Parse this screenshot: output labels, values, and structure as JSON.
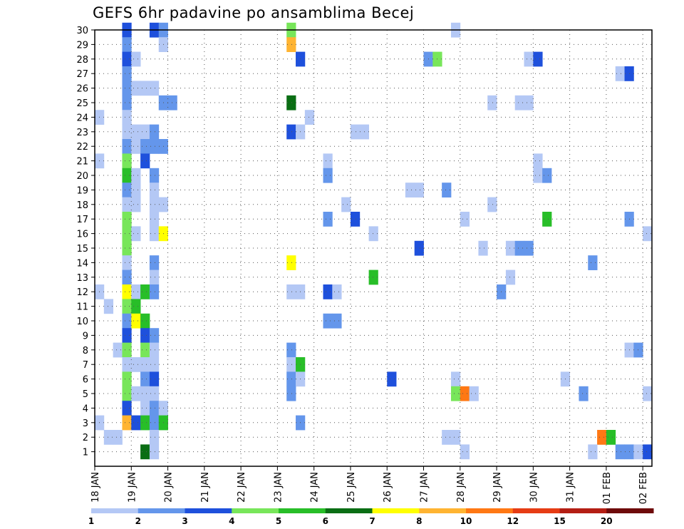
{
  "chart_data": {
    "type": "heatmap",
    "title": "GEFS 6hr padavine po ansamblima Becej",
    "x_tick_labels": [
      "18 JAN",
      "19 JAN",
      "20 JAN",
      "21 JAN",
      "22 JAN",
      "23 JAN",
      "24 JAN",
      "25 JAN",
      "26 JAN",
      "27 JAN",
      "28 JAN",
      "29 JAN",
      "30 JAN",
      "31 JAN",
      "01 FEB",
      "02 FEB"
    ],
    "y_tick_labels": [
      1,
      2,
      3,
      4,
      5,
      6,
      7,
      8,
      9,
      10,
      11,
      12,
      13,
      14,
      15,
      16,
      17,
      18,
      19,
      20,
      21,
      22,
      23,
      24,
      25,
      26,
      27,
      28,
      29,
      30
    ],
    "x_unit": "6-hour step from 18 JAN 00Z",
    "x_range": [
      0,
      61
    ],
    "y_range": [
      0,
      30
    ],
    "grid": true,
    "colorbar": {
      "tick_labels": [
        "1",
        "2",
        "3",
        "4",
        "5",
        "6",
        "7",
        "8",
        "10",
        "12",
        "15",
        "20"
      ],
      "colors": [
        "#b4c8f5",
        "#6496eb",
        "#1e50dc",
        "#78e65a",
        "#28be28",
        "#0a6e14",
        "#ffff00",
        "#ffb432",
        "#ff7814",
        "#e63c14",
        "#b41e14",
        "#6e0a0a"
      ]
    },
    "cells": [
      [
        3,
        30,
        2
      ],
      [
        6,
        30,
        2
      ],
      [
        7,
        30,
        1
      ],
      [
        21,
        30,
        3
      ],
      [
        39,
        30,
        0
      ],
      [
        3,
        29,
        1
      ],
      [
        7,
        29,
        0
      ],
      [
        21,
        29,
        7
      ],
      [
        3,
        28,
        2
      ],
      [
        4,
        28,
        0
      ],
      [
        22,
        28,
        2
      ],
      [
        36,
        28,
        1
      ],
      [
        37,
        28,
        3
      ],
      [
        47,
        28,
        0
      ],
      [
        48,
        28,
        2
      ],
      [
        3,
        27,
        1
      ],
      [
        57,
        27,
        0
      ],
      [
        58,
        27,
        2
      ],
      [
        3,
        26,
        1
      ],
      [
        4,
        26,
        0
      ],
      [
        5,
        26,
        0
      ],
      [
        6,
        26,
        0
      ],
      [
        3,
        25,
        1
      ],
      [
        7,
        25,
        1
      ],
      [
        8,
        25,
        1
      ],
      [
        21,
        25,
        5
      ],
      [
        43,
        25,
        0
      ],
      [
        46,
        25,
        0
      ],
      [
        47,
        25,
        0
      ],
      [
        0,
        24,
        0
      ],
      [
        3,
        24,
        0
      ],
      [
        23,
        24,
        0
      ],
      [
        3,
        23,
        0
      ],
      [
        4,
        23,
        0
      ],
      [
        5,
        23,
        0
      ],
      [
        6,
        23,
        1
      ],
      [
        21,
        23,
        2
      ],
      [
        22,
        23,
        0
      ],
      [
        28,
        23,
        0
      ],
      [
        29,
        23,
        0
      ],
      [
        3,
        22,
        1
      ],
      [
        4,
        22,
        0
      ],
      [
        5,
        22,
        1
      ],
      [
        6,
        22,
        1
      ],
      [
        7,
        22,
        1
      ],
      [
        0,
        21,
        0
      ],
      [
        3,
        21,
        3
      ],
      [
        5,
        21,
        2
      ],
      [
        25,
        21,
        0
      ],
      [
        48,
        21,
        0
      ],
      [
        3,
        20,
        4
      ],
      [
        4,
        20,
        0
      ],
      [
        6,
        20,
        1
      ],
      [
        25,
        20,
        1
      ],
      [
        48,
        20,
        0
      ],
      [
        49,
        20,
        1
      ],
      [
        3,
        19,
        1
      ],
      [
        4,
        19,
        0
      ],
      [
        6,
        19,
        0
      ],
      [
        34,
        19,
        0
      ],
      [
        35,
        19,
        0
      ],
      [
        38,
        19,
        1
      ],
      [
        3,
        18,
        0
      ],
      [
        4,
        18,
        0
      ],
      [
        6,
        18,
        0
      ],
      [
        7,
        18,
        0
      ],
      [
        27,
        18,
        0
      ],
      [
        43,
        18,
        0
      ],
      [
        3,
        17,
        3
      ],
      [
        6,
        17,
        0
      ],
      [
        25,
        17,
        1
      ],
      [
        28,
        17,
        2
      ],
      [
        40,
        17,
        0
      ],
      [
        49,
        17,
        4
      ],
      [
        58,
        17,
        1
      ],
      [
        3,
        16,
        3
      ],
      [
        4,
        16,
        0
      ],
      [
        6,
        16,
        0
      ],
      [
        7,
        16,
        6
      ],
      [
        30,
        16,
        0
      ],
      [
        60,
        16,
        0
      ],
      [
        3,
        15,
        3
      ],
      [
        35,
        15,
        2
      ],
      [
        42,
        15,
        0
      ],
      [
        45,
        15,
        0
      ],
      [
        46,
        15,
        1
      ],
      [
        47,
        15,
        1
      ],
      [
        3,
        14,
        0
      ],
      [
        6,
        14,
        1
      ],
      [
        21,
        14,
        6
      ],
      [
        54,
        14,
        1
      ],
      [
        3,
        13,
        1
      ],
      [
        6,
        13,
        0
      ],
      [
        30,
        13,
        4
      ],
      [
        45,
        13,
        0
      ],
      [
        0,
        12,
        0
      ],
      [
        3,
        12,
        6
      ],
      [
        4,
        12,
        0
      ],
      [
        5,
        12,
        4
      ],
      [
        6,
        12,
        1
      ],
      [
        21,
        12,
        0
      ],
      [
        22,
        12,
        0
      ],
      [
        25,
        12,
        2
      ],
      [
        26,
        12,
        0
      ],
      [
        44,
        12,
        1
      ],
      [
        1,
        11,
        0
      ],
      [
        3,
        11,
        3
      ],
      [
        4,
        11,
        4
      ],
      [
        3,
        10,
        1
      ],
      [
        4,
        10,
        6
      ],
      [
        5,
        10,
        4
      ],
      [
        25,
        10,
        1
      ],
      [
        26,
        10,
        1
      ],
      [
        3,
        9,
        2
      ],
      [
        5,
        9,
        2
      ],
      [
        6,
        9,
        1
      ],
      [
        2,
        8,
        0
      ],
      [
        3,
        8,
        3
      ],
      [
        5,
        8,
        3
      ],
      [
        6,
        8,
        0
      ],
      [
        21,
        8,
        1
      ],
      [
        58,
        8,
        0
      ],
      [
        59,
        8,
        1
      ],
      [
        3,
        7,
        0
      ],
      [
        4,
        7,
        0
      ],
      [
        5,
        7,
        0
      ],
      [
        6,
        7,
        0
      ],
      [
        21,
        7,
        0
      ],
      [
        22,
        7,
        4
      ],
      [
        3,
        6,
        3
      ],
      [
        5,
        6,
        1
      ],
      [
        6,
        6,
        2
      ],
      [
        21,
        6,
        1
      ],
      [
        22,
        6,
        0
      ],
      [
        32,
        6,
        2
      ],
      [
        39,
        6,
        0
      ],
      [
        51,
        6,
        0
      ],
      [
        3,
        5,
        3
      ],
      [
        4,
        5,
        0
      ],
      [
        5,
        5,
        0
      ],
      [
        6,
        5,
        0
      ],
      [
        21,
        5,
        1
      ],
      [
        39,
        5,
        3
      ],
      [
        40,
        5,
        8
      ],
      [
        41,
        5,
        0
      ],
      [
        53,
        5,
        1
      ],
      [
        60,
        5,
        0
      ],
      [
        3,
        4,
        2
      ],
      [
        5,
        4,
        0
      ],
      [
        6,
        4,
        1
      ],
      [
        7,
        4,
        0
      ],
      [
        0,
        3,
        0
      ],
      [
        3,
        3,
        7
      ],
      [
        4,
        3,
        2
      ],
      [
        5,
        3,
        4
      ],
      [
        6,
        3,
        1
      ],
      [
        7,
        3,
        4
      ],
      [
        22,
        3,
        1
      ],
      [
        1,
        2,
        0
      ],
      [
        2,
        2,
        0
      ],
      [
        6,
        2,
        0
      ],
      [
        38,
        2,
        0
      ],
      [
        39,
        2,
        0
      ],
      [
        55,
        2,
        8
      ],
      [
        56,
        2,
        4
      ],
      [
        5,
        1,
        5
      ],
      [
        6,
        1,
        0
      ],
      [
        40,
        1,
        0
      ],
      [
        54,
        1,
        0
      ],
      [
        57,
        1,
        1
      ],
      [
        58,
        1,
        1
      ],
      [
        59,
        1,
        0
      ],
      [
        60,
        1,
        2
      ]
    ]
  }
}
